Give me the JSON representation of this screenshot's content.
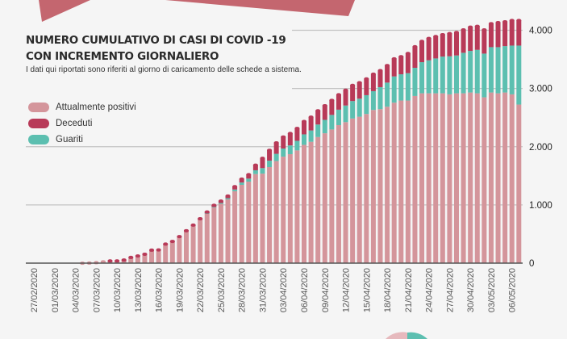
{
  "header": {
    "title_line1": "NUMERO CUMULATIVO DI CASI DI COVID -19",
    "title_line2": "CON INCREMENTO GIORNALIERO",
    "subtitle": "I dati qui riportati sono riferiti al giorno di caricamento delle schede a sistema."
  },
  "legend": [
    {
      "label": "Attualmente positivi",
      "color": "#d4959b"
    },
    {
      "label": "Deceduti",
      "color": "#b83a58"
    },
    {
      "label": "Guariti",
      "color": "#5cbfb0"
    }
  ],
  "chart_data": {
    "type": "bar",
    "stacked": true,
    "title": "NUMERO CUMULATIVO DI CASI DI COVID -19 CON INCREMENTO GIORNALIERO",
    "ylim": [
      0,
      4000
    ],
    "y_ticks": [
      0,
      1000,
      2000,
      3000,
      4000
    ],
    "y_tick_labels": [
      "0",
      "1.000",
      "2.000",
      "3.000",
      "4.000"
    ],
    "y_axis_position": "right",
    "grid": true,
    "legend_placement": "top-left",
    "categories": [
      "27/02/2020",
      "28/02/2020",
      "29/02/2020",
      "01/03/2020",
      "02/03/2020",
      "03/03/2020",
      "04/03/2020",
      "05/03/2020",
      "06/03/2020",
      "07/03/2020",
      "08/03/2020",
      "09/03/2020",
      "10/03/2020",
      "11/03/2020",
      "12/03/2020",
      "13/03/2020",
      "14/03/2020",
      "15/03/2020",
      "16/03/2020",
      "17/03/2020",
      "18/03/2020",
      "19/03/2020",
      "20/03/2020",
      "21/03/2020",
      "22/03/2020",
      "23/03/2020",
      "24/03/2020",
      "25/03/2020",
      "26/03/2020",
      "27/03/2020",
      "28/03/2020",
      "29/03/2020",
      "30/03/2020",
      "31/03/2020",
      "01/04/2020",
      "02/04/2020",
      "03/04/2020",
      "04/04/2020",
      "05/04/2020",
      "06/04/2020",
      "07/04/2020",
      "08/04/2020",
      "09/04/2020",
      "10/04/2020",
      "11/04/2020",
      "12/04/2020",
      "13/04/2020",
      "14/04/2020",
      "15/04/2020",
      "16/04/2020",
      "17/04/2020",
      "18/04/2020",
      "19/04/2020",
      "20/04/2020",
      "21/04/2020",
      "22/04/2020",
      "23/04/2020",
      "24/04/2020",
      "25/04/2020",
      "26/04/2020",
      "27/04/2020",
      "28/04/2020",
      "29/04/2020",
      "30/04/2020",
      "01/05/2020",
      "02/05/2020",
      "03/05/2020",
      "04/05/2020",
      "05/05/2020",
      "06/05/2020",
      "07/05/2020"
    ],
    "x_tick_labels": [
      "27/02/2020",
      "01/03/2020",
      "04/03/2020",
      "07/03/2020",
      "10/03/2020",
      "13/03/2020",
      "16/03/2020",
      "19/03/2020",
      "22/03/2020",
      "25/03/2020",
      "28/03/2020",
      "31/03/2020",
      "03/04/2020",
      "06/04/2020",
      "09/04/2020",
      "12/04/2020",
      "15/04/2020",
      "18/04/2020",
      "21/04/2020",
      "24/04/2020",
      "27/04/2020",
      "30/04/2020",
      "03/05/2020",
      "06/05/2020"
    ],
    "series": [
      {
        "name": "Attualmente positivi",
        "color": "#d4959b",
        "values": [
          0,
          0,
          0,
          0,
          0,
          0,
          0,
          5,
          8,
          15,
          30,
          44,
          44,
          59,
          103,
          127,
          156,
          224,
          227,
          325,
          369,
          450,
          548,
          640,
          745,
          850,
          955,
          1018,
          1095,
          1235,
          1345,
          1400,
          1530,
          1537,
          1650,
          1753,
          1829,
          1872,
          1936,
          2032,
          2084,
          2166,
          2231,
          2296,
          2371,
          2422,
          2484,
          2515,
          2562,
          2631,
          2645,
          2687,
          2756,
          2793,
          2793,
          2871,
          2917,
          2917,
          2917,
          2917,
          2899,
          2917,
          2917,
          2931,
          2917,
          2848,
          2931,
          2917,
          2931,
          2899,
          2724
        ]
      },
      {
        "name": "Guariti",
        "color": "#5cbfb0",
        "values": [
          0,
          0,
          0,
          0,
          0,
          0,
          0,
          0,
          0,
          0,
          0,
          0,
          0,
          0,
          0,
          0,
          0,
          0,
          0,
          0,
          0,
          0,
          0,
          0,
          0,
          5,
          10,
          15,
          20,
          30,
          40,
          52,
          65,
          95,
          110,
          125,
          140,
          150,
          165,
          180,
          195,
          215,
          230,
          250,
          265,
          285,
          300,
          310,
          323,
          323,
          378,
          414,
          451,
          451,
          470,
          484,
          535,
          567,
          599,
          631,
          654,
          650,
          696,
          714,
          747,
          751,
          779,
          793,
          797,
          838,
          1013
        ]
      },
      {
        "name": "Deceduti",
        "color": "#b83a58",
        "values": [
          0,
          0,
          0,
          0,
          0,
          0,
          0,
          0,
          0,
          0,
          0,
          1,
          1,
          1,
          2,
          3,
          4,
          6,
          7,
          9,
          11,
          13,
          16,
          20,
          25,
          30,
          35,
          40,
          45,
          55,
          65,
          75,
          95,
          175,
          185,
          195,
          205,
          212,
          220,
          228,
          235,
          243,
          250,
          257,
          263,
          270,
          276,
          281,
          286,
          299,
          290,
          300,
          309,
          309,
          345,
          369,
          364,
          382,
          383,
          383,
          396,
          401,
          401,
          415,
          410,
          415,
          410,
          428,
          424,
          438,
          438
        ]
      }
    ]
  }
}
